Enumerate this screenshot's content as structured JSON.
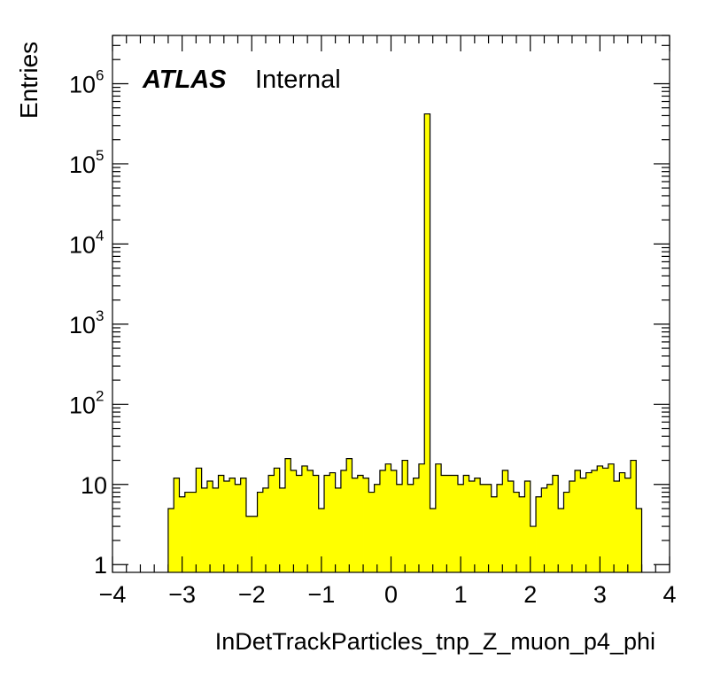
{
  "chart_data": {
    "type": "bar",
    "xlabel": "InDetTrackParticles_tnp_Z_muon_p4_phi",
    "ylabel": "Entries",
    "annotation": {
      "bold": "ATLAS",
      "normal": "Internal"
    },
    "xlim": [
      -4,
      4
    ],
    "ylim": [
      0.8,
      4000000
    ],
    "yscale": "log",
    "x_ticks": [
      "−4",
      "−3",
      "−2",
      "−1",
      "0",
      "1",
      "2",
      "3",
      "4"
    ],
    "y_ticks": [
      {
        "value": 1,
        "base": "1",
        "exp": ""
      },
      {
        "value": 10,
        "base": "10",
        "exp": ""
      },
      {
        "value": 100,
        "base": "10",
        "exp": "2"
      },
      {
        "value": 1000,
        "base": "10",
        "exp": "3"
      },
      {
        "value": 10000,
        "base": "10",
        "exp": "4"
      },
      {
        "value": 100000,
        "base": "10",
        "exp": "5"
      },
      {
        "value": 1000000,
        "base": "10",
        "exp": "6"
      }
    ],
    "bin_low": -3.2,
    "bin_width": 0.08,
    "values": [
      5,
      12,
      7,
      8,
      8,
      16,
      9,
      11,
      9,
      13,
      11,
      12,
      10,
      12,
      4,
      4,
      8,
      9,
      13,
      16,
      9,
      21,
      15,
      13,
      17,
      15,
      13,
      5,
      13,
      14,
      9,
      15,
      21,
      12,
      13,
      12,
      8,
      10,
      15,
      18,
      15,
      10,
      20,
      10,
      12,
      18,
      420000,
      5,
      18,
      13,
      13,
      13,
      10,
      13,
      11,
      12,
      10,
      10,
      7,
      10,
      15,
      11,
      8,
      7,
      11,
      3,
      7,
      9,
      10,
      13,
      5,
      8,
      11,
      15,
      12,
      14,
      15,
      17,
      16,
      18,
      11,
      14,
      12,
      20,
      5
    ],
    "fill_color": "#ffff00",
    "line_color": "#000000"
  }
}
